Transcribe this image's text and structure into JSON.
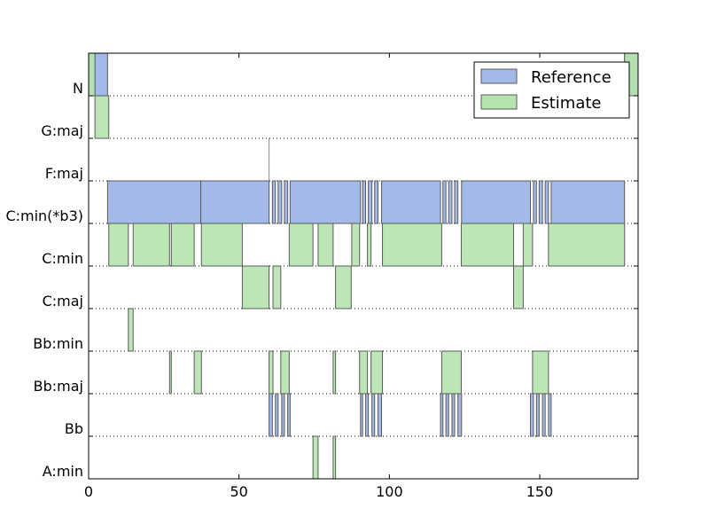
{
  "chart_data": {
    "type": "bar",
    "orientation": "horizontal-segments",
    "title": "",
    "xlabel": "",
    "ylabel": "",
    "xlim": [
      0,
      182.7
    ],
    "xticks": [
      "0",
      "50",
      "100",
      "150"
    ],
    "categories": [
      "N",
      "G:maj",
      "F:maj",
      "C:min(*b3)",
      "C:min",
      "C:maj",
      "Bb:min",
      "Bb:maj",
      "Bb",
      "A:min"
    ],
    "grid": "dotted horizontal row separators",
    "legend_position": "top-right",
    "colors": {
      "reference": "#a3b9e8",
      "estimate": "#b5e3ad",
      "overlap": "#7fbf9b",
      "edge": "#5a5a5a"
    },
    "series": [
      {
        "name": "Reference",
        "segments": [
          {
            "label": "N",
            "start": 0.0,
            "end": 6.3
          },
          {
            "label": "N",
            "start": 178.2,
            "end": 182.7
          },
          {
            "label": "C:min(*b3)",
            "start": 6.3,
            "end": 37.3
          },
          {
            "label": "C:min(*b3)",
            "start": 37.3,
            "end": 60.0
          },
          {
            "label": "C:min(*b3)",
            "start": 61.1,
            "end": 62.1
          },
          {
            "label": "C:min(*b3)",
            "start": 63.0,
            "end": 64.2
          },
          {
            "label": "C:min(*b3)",
            "start": 65.1,
            "end": 66.2
          },
          {
            "label": "C:min(*b3)",
            "start": 67.0,
            "end": 90.4
          },
          {
            "label": "C:min(*b3)",
            "start": 91.1,
            "end": 92.1
          },
          {
            "label": "C:min(*b3)",
            "start": 93.0,
            "end": 94.2
          },
          {
            "label": "C:min(*b3)",
            "start": 95.1,
            "end": 96.2
          },
          {
            "label": "C:min(*b3)",
            "start": 97.4,
            "end": 117.0
          },
          {
            "label": "C:min(*b3)",
            "start": 117.8,
            "end": 118.8
          },
          {
            "label": "C:min(*b3)",
            "start": 119.7,
            "end": 120.8
          },
          {
            "label": "C:min(*b3)",
            "start": 121.7,
            "end": 122.8
          },
          {
            "label": "C:min(*b3)",
            "start": 124.0,
            "end": 146.9
          },
          {
            "label": "C:min(*b3)",
            "start": 147.9,
            "end": 148.9
          },
          {
            "label": "C:min(*b3)",
            "start": 149.8,
            "end": 150.9
          },
          {
            "label": "C:min(*b3)",
            "start": 151.8,
            "end": 152.9
          },
          {
            "label": "C:min(*b3)",
            "start": 153.8,
            "end": 178.2
          },
          {
            "label": "Bb",
            "start": 60.0,
            "end": 61.1
          },
          {
            "label": "Bb",
            "start": 62.1,
            "end": 63.0
          },
          {
            "label": "Bb",
            "start": 64.2,
            "end": 65.1
          },
          {
            "label": "Bb",
            "start": 66.2,
            "end": 67.0
          },
          {
            "label": "Bb",
            "start": 90.4,
            "end": 91.1
          },
          {
            "label": "Bb",
            "start": 92.1,
            "end": 93.0
          },
          {
            "label": "Bb",
            "start": 94.2,
            "end": 95.1
          },
          {
            "label": "Bb",
            "start": 96.2,
            "end": 97.4
          },
          {
            "label": "Bb",
            "start": 117.0,
            "end": 117.8
          },
          {
            "label": "Bb",
            "start": 118.8,
            "end": 119.7
          },
          {
            "label": "Bb",
            "start": 120.8,
            "end": 121.7
          },
          {
            "label": "Bb",
            "start": 122.8,
            "end": 124.0
          },
          {
            "label": "Bb",
            "start": 146.9,
            "end": 147.9
          },
          {
            "label": "Bb",
            "start": 148.9,
            "end": 149.8
          },
          {
            "label": "Bb",
            "start": 150.9,
            "end": 151.8
          },
          {
            "label": "Bb",
            "start": 152.9,
            "end": 153.8
          }
        ]
      },
      {
        "name": "Estimate",
        "segments": [
          {
            "label": "N",
            "start": 0.0,
            "end": 2.1
          },
          {
            "label": "N",
            "start": 178.2,
            "end": 182.7
          },
          {
            "label": "G:maj",
            "start": 2.1,
            "end": 6.7
          },
          {
            "label": "C:min",
            "start": 6.7,
            "end": 13.2
          },
          {
            "label": "C:min",
            "start": 14.8,
            "end": 26.9
          },
          {
            "label": "C:min",
            "start": 27.5,
            "end": 35.1
          },
          {
            "label": "C:min",
            "start": 37.5,
            "end": 51.1
          },
          {
            "label": "C:min",
            "start": 66.7,
            "end": 74.6
          },
          {
            "label": "C:min",
            "start": 76.3,
            "end": 81.3
          },
          {
            "label": "C:min",
            "start": 87.5,
            "end": 90.1
          },
          {
            "label": "C:min",
            "start": 92.7,
            "end": 93.9
          },
          {
            "label": "C:min",
            "start": 97.7,
            "end": 117.4
          },
          {
            "label": "C:min",
            "start": 123.9,
            "end": 141.3
          },
          {
            "label": "C:min",
            "start": 144.5,
            "end": 147.6
          },
          {
            "label": "C:min",
            "start": 152.9,
            "end": 178.2
          },
          {
            "label": "C:maj",
            "start": 51.1,
            "end": 60.0
          },
          {
            "label": "C:maj",
            "start": 61.3,
            "end": 63.9
          },
          {
            "label": "C:maj",
            "start": 82.1,
            "end": 87.3
          },
          {
            "label": "C:maj",
            "start": 141.3,
            "end": 144.5
          },
          {
            "label": "Bb:min",
            "start": 13.2,
            "end": 14.8
          },
          {
            "label": "Bb:maj",
            "start": 26.9,
            "end": 27.5
          },
          {
            "label": "Bb:maj",
            "start": 35.1,
            "end": 37.5
          },
          {
            "label": "Bb:maj",
            "start": 60.0,
            "end": 61.3
          },
          {
            "label": "Bb:maj",
            "start": 63.9,
            "end": 66.7
          },
          {
            "label": "Bb:maj",
            "start": 81.3,
            "end": 82.1
          },
          {
            "label": "Bb:maj",
            "start": 90.1,
            "end": 92.7
          },
          {
            "label": "Bb:maj",
            "start": 93.9,
            "end": 97.7
          },
          {
            "label": "Bb:maj",
            "start": 117.4,
            "end": 123.9
          },
          {
            "label": "Bb:maj",
            "start": 147.6,
            "end": 152.9
          },
          {
            "label": "A:min",
            "start": 74.6,
            "end": 76.3
          },
          {
            "label": "A:min",
            "start": 81.3,
            "end": 82.1
          }
        ]
      }
    ],
    "annotations": [
      {
        "type": "vertical-line",
        "x": 60.0,
        "from_label": "F:maj"
      }
    ]
  }
}
